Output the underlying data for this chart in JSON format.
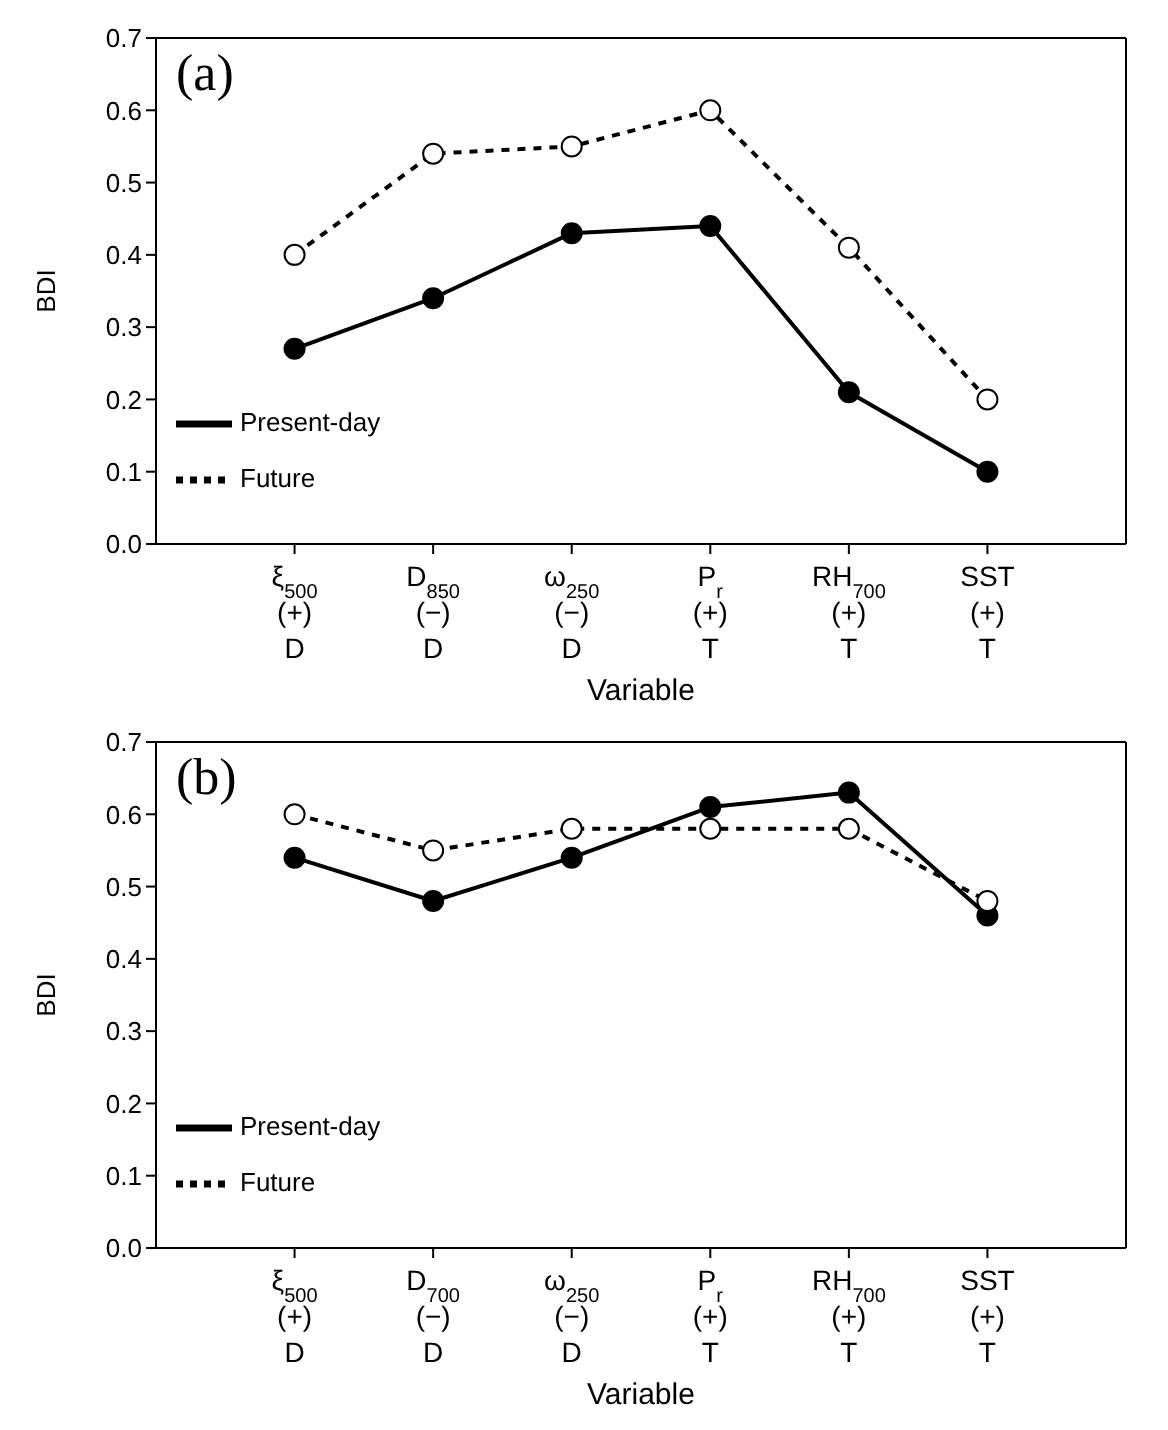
{
  "chart_data": [
    {
      "type": "line",
      "title": "(a)",
      "xlabel": "Variable",
      "ylabel": "BDI",
      "categories": [
        "ξ$_{500}$\n(+)\nD",
        "D$_{850}$\n(−)\nD",
        "ω$_{250}$\n(−)\nD",
        "P$_{r}$\n(+)\nT",
        "RH$_{700}$\n(+)\nT",
        "SST\n(+)\nT"
      ],
      "series": [
        {
          "name": "Present-day",
          "color": "#000000",
          "marker": "circle",
          "line_style": "solid",
          "values": [
            0.27,
            0.34,
            0.43,
            0.44,
            0.21,
            0.1
          ]
        },
        {
          "name": "Future",
          "color": "#000000",
          "marker": "circle",
          "line_style": "dashed",
          "values": [
            0.4,
            0.54,
            0.55,
            0.6,
            0.41,
            0.2
          ]
        }
      ],
      "ylim": [
        0,
        0.7
      ],
      "yticks": [
        {
          "value": 0,
          "label": "0.0"
        },
        0.1,
        0.2,
        0.3,
        0.4,
        0.5,
        0.6,
        0.7
      ],
      "grid": false,
      "legend": "bottom left"
    },
    {
      "type": "line",
      "title": "(b)",
      "xlabel": "Variable",
      "ylabel": "BDI",
      "categories": [
        "ξ$_{500}$\n(+)\nD",
        "D$_{700}$\n(−)\nD",
        "ω$_{250}$\n(−)\nD",
        "P$_{r}$\n(+)\nT",
        "RH$_{700}$\n(+)\nT",
        "SST\n(+)\nT"
      ],
      "series": [
        {
          "name": "Present-day",
          "color": "#000000",
          "marker": "circle",
          "line_style": "solid",
          "values": [
            0.54,
            0.48,
            0.54,
            0.61,
            0.63,
            0.46
          ]
        },
        {
          "name": "Future",
          "color": "#000000",
          "marker": "circle",
          "line_style": "dashed",
          "values": [
            0.6,
            0.55,
            0.58,
            0.58,
            0.58,
            0.48
          ]
        }
      ],
      "ylim": [
        0,
        0.7
      ],
      "yticks": [
        {
          "value": 0,
          "label": "0.0"
        },
        0.1,
        0.2,
        0.3,
        0.4,
        0.5,
        0.6,
        0.7
      ],
      "grid": false,
      "legend": "bottom left"
    }
  ]
}
